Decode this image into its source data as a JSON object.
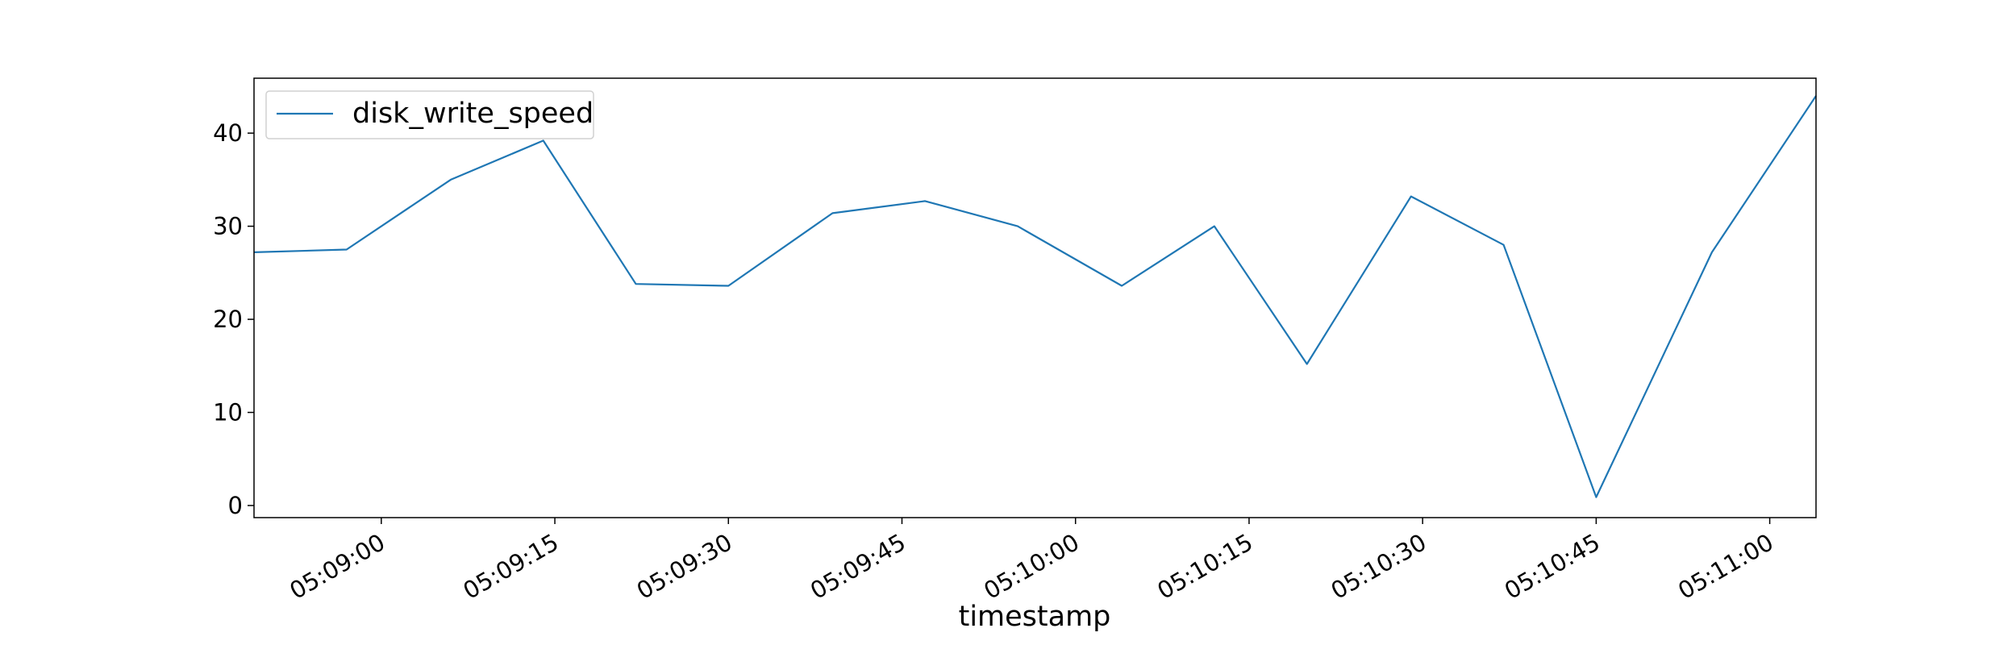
{
  "chart_data": {
    "type": "line",
    "title": "",
    "xlabel": "timestamp",
    "ylabel": "",
    "legend_position": "top-left",
    "grid": false,
    "x_range": [
      "05:08:49",
      "05:11:04"
    ],
    "ylim": [
      -1.3,
      45.9
    ],
    "x_ticks": [
      "05:09:00",
      "05:09:15",
      "05:09:30",
      "05:09:45",
      "05:10:00",
      "05:10:15",
      "05:10:30",
      "05:10:45",
      "05:11:00"
    ],
    "y_ticks": [
      0,
      10,
      20,
      30,
      40
    ],
    "series": [
      {
        "name": "disk_write_speed",
        "color": "#1f77b4",
        "x": [
          "05:08:49",
          "05:08:57",
          "05:09:06",
          "05:09:14",
          "05:09:22",
          "05:09:30",
          "05:09:39",
          "05:09:47",
          "05:09:55",
          "05:10:04",
          "05:10:12",
          "05:10:20",
          "05:10:29",
          "05:10:37",
          "05:10:45",
          "05:10:55",
          "05:11:04"
        ],
        "values": [
          27.2,
          27.5,
          35.0,
          39.2,
          23.8,
          23.6,
          31.4,
          32.7,
          30.0,
          23.6,
          30.0,
          15.2,
          33.2,
          28.0,
          0.9,
          27.2,
          44.0
        ]
      }
    ]
  }
}
